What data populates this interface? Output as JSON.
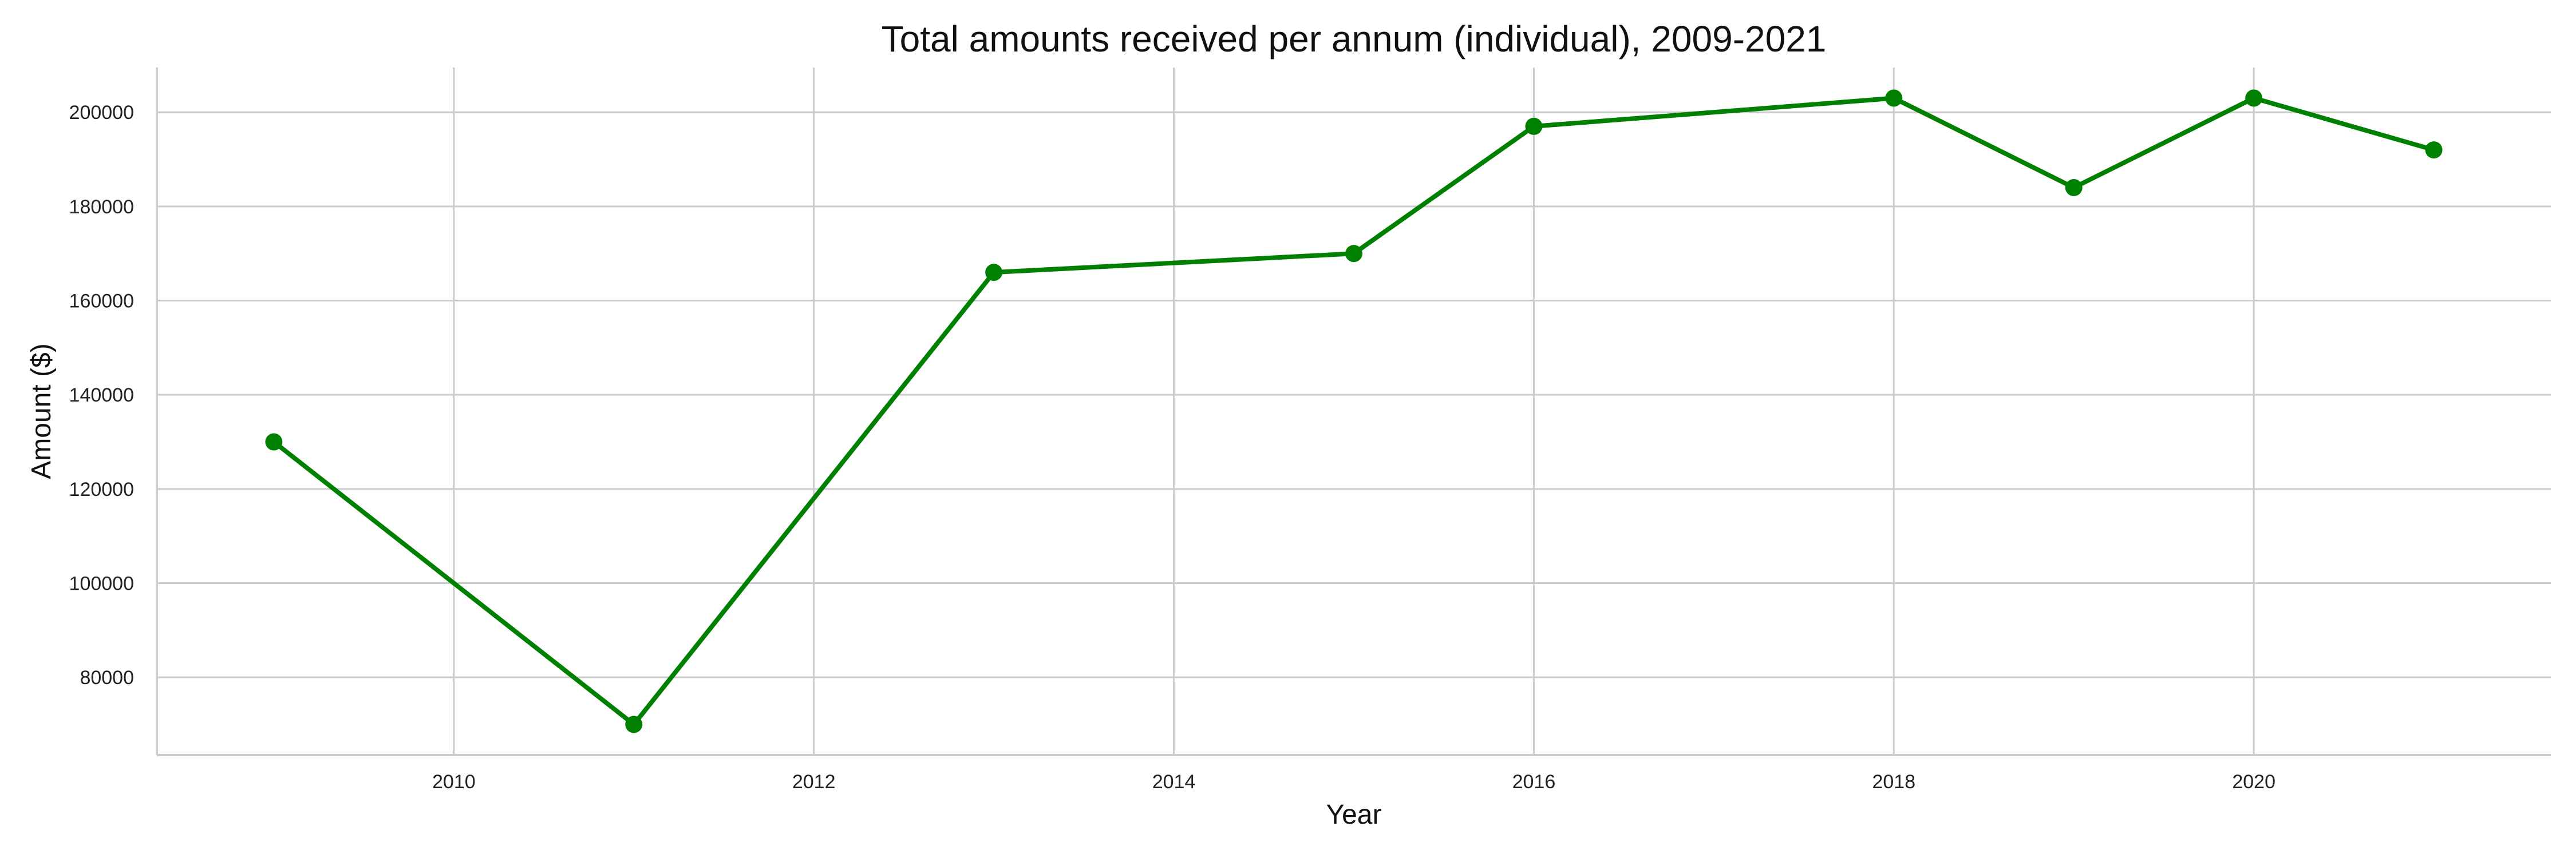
{
  "chart_data": {
    "type": "line",
    "title": "Total amounts received per annum (individual), 2009-2021",
    "xlabel": "Year",
    "ylabel": "Amount ($)",
    "x": [
      2009,
      2011,
      2013,
      2015,
      2016,
      2018,
      2019,
      2020,
      2021
    ],
    "series": [
      {
        "values": [
          130000,
          70000,
          166000,
          170000,
          197000,
          203000,
          184000,
          203000,
          192000
        ],
        "color": "#008000"
      }
    ],
    "xticks": [
      2010,
      2012,
      2014,
      2016,
      2018,
      2020
    ],
    "yticks": [
      80000,
      100000,
      120000,
      140000,
      160000,
      180000,
      200000
    ],
    "xlim": [
      2008.35,
      2021.65
    ],
    "ylim": [
      63500,
      209500
    ],
    "grid": true,
    "markers": true
  }
}
